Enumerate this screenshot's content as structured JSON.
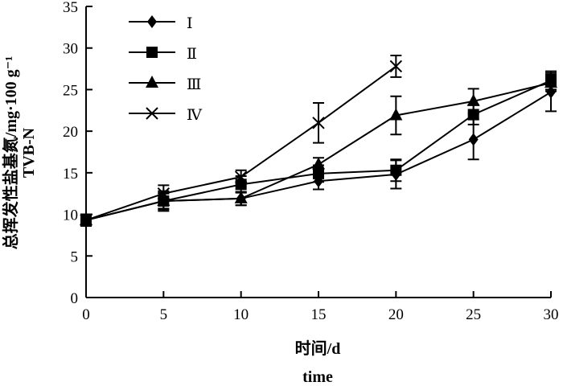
{
  "chart_data": {
    "type": "line",
    "title": "",
    "xlabel": "时间/d",
    "xlabel_en": "time",
    "ylabel": "总挥发性盐基氮/mg·100 g⁻¹",
    "ylabel_en": "TVB-N",
    "xlim": [
      0,
      30
    ],
    "ylim": [
      0,
      35
    ],
    "xticks": [
      0,
      5,
      10,
      15,
      20,
      25,
      30
    ],
    "yticks": [
      0,
      5,
      10,
      15,
      20,
      25,
      30,
      35
    ],
    "grid": false,
    "legend_position": "top-left",
    "series": [
      {
        "name": "Ⅰ",
        "marker": "diamond",
        "x": [
          0,
          5,
          10,
          15,
          20,
          25,
          30
        ],
        "values": [
          9.3,
          11.6,
          11.9,
          14.0,
          14.8,
          19.0,
          24.7
        ],
        "errors": [
          0.7,
          1.2,
          0.8,
          1.0,
          1.7,
          2.4,
          2.3
        ]
      },
      {
        "name": "Ⅱ",
        "marker": "square",
        "x": [
          0,
          5,
          10,
          15,
          20,
          25,
          30
        ],
        "values": [
          9.3,
          11.6,
          13.6,
          14.9,
          15.3,
          22.0,
          26.1
        ],
        "errors": [
          0.7,
          0.9,
          1.0,
          1.0,
          1.3,
          1.2,
          1.1
        ]
      },
      {
        "name": "Ⅲ",
        "marker": "triangle",
        "x": [
          0,
          5,
          10,
          15,
          20,
          25,
          30
        ],
        "values": [
          9.3,
          11.6,
          11.9,
          16.0,
          21.9,
          23.6,
          25.8
        ],
        "errors": [
          0.7,
          1.0,
          0.8,
          0.8,
          2.3,
          1.5,
          1.0
        ]
      },
      {
        "name": "Ⅳ",
        "marker": "x",
        "x": [
          0,
          5,
          10,
          15,
          20
        ],
        "values": [
          9.3,
          12.5,
          14.5,
          21.0,
          27.8
        ],
        "errors": [
          0.7,
          1.0,
          0.8,
          2.4,
          1.3
        ]
      }
    ]
  }
}
